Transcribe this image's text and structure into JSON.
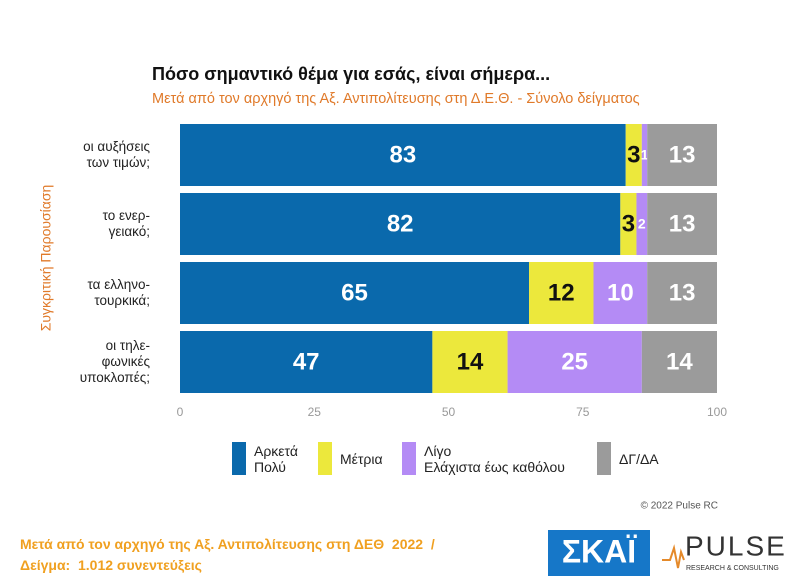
{
  "chart_data": {
    "type": "stacked-bar-horizontal",
    "title": "Πόσο σημαντικό θέμα για εσάς, είναι σήμερα...",
    "subtitle": "Μετά από τον αρχηγό της Αξ. Αντιπολίτευσης στη Δ.Ε.Θ.  -  Σύνολο δείγματος",
    "y_label": "Συγκριτική  Παρουσίαση",
    "categories": [
      "οι αυξήσεις\nτων τιμών;",
      "το ενερ-\nγειακό;",
      "τα ελληνο-\nτουρκικά;",
      "οι τηλε-\nφωνικές\nυποκλοπές;"
    ],
    "series": [
      {
        "name": "Αρκετά\nΠολύ",
        "color": "#0a69ac",
        "values": [
          83,
          82,
          65,
          47
        ]
      },
      {
        "name": "Μέτρια",
        "color": "#ece83c",
        "values": [
          3,
          3,
          12,
          14
        ]
      },
      {
        "name": "Λίγο\nΕλάχιστα έως καθόλου",
        "color": "#b48bf5",
        "values": [
          1,
          2,
          10,
          25
        ]
      },
      {
        "name": "ΔΓ/ΔΑ",
        "color": "#9b9b9b",
        "values": [
          13,
          13,
          13,
          14
        ]
      }
    ],
    "xlim": [
      0,
      100
    ],
    "xticks": [
      0,
      25,
      50,
      75,
      100
    ],
    "grid": false
  },
  "footer": {
    "copyright": "© 2022 Pulse RC",
    "lines": [
      "Μετά από τον αρχηγό της Αξ. Αντιπολίτευσης στη ΔΕΘ  2022  /",
      "Δείγμα:  1.012 συνεντεύξεις"
    ],
    "logo_skai": "ΣΚΑΪ",
    "logo_pulse": "PULSE",
    "logo_pulse_sub": "RESEARCH & CONSULTING"
  }
}
